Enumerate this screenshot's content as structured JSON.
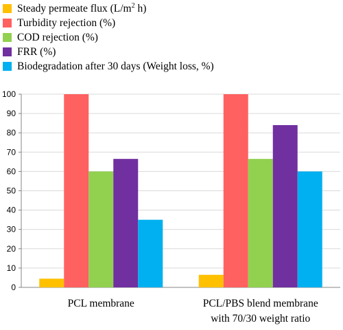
{
  "chart_data": {
    "type": "bar",
    "categories": [
      [
        "PCL membrane"
      ],
      [
        "PCL/PBS blend membrane",
        "with 70/30 weight ratio"
      ]
    ],
    "series": [
      {
        "name": "Steady permeate flux (L/m2 h)",
        "color": "#FFC000",
        "values": [
          4.5,
          6.5
        ]
      },
      {
        "name": "Turbidity rejection (%)",
        "color": "#FF6161",
        "values": [
          100,
          100
        ]
      },
      {
        "name": "COD rejection (%)",
        "color": "#92D050",
        "values": [
          60,
          66.5
        ]
      },
      {
        "name": "FRR (%)",
        "color": "#7030A0",
        "values": [
          66.5,
          84
        ]
      },
      {
        "name": "Biodegradation after 30 days (Weight loss, %)",
        "color": "#00B0F0",
        "values": [
          35,
          60
        ]
      }
    ],
    "ylim": [
      0,
      100
    ],
    "yticks": [
      0,
      10,
      20,
      30,
      40,
      50,
      60,
      70,
      80,
      90,
      100
    ],
    "grid": true,
    "legend_position": "top-left",
    "axis_color": "#868686",
    "grid_color": "#D9D9D9"
  }
}
